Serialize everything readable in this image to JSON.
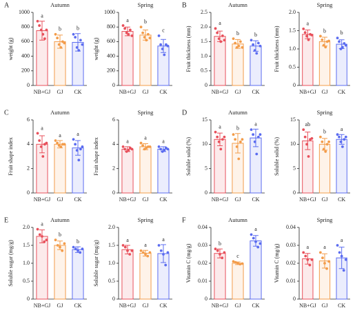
{
  "colors": [
    "#e8505b",
    "#f39c4a",
    "#5b6cf0"
  ],
  "chart_data": [
    {
      "type": "bar",
      "panel": "A",
      "title": "Autumn",
      "ylabel": "weight (g)",
      "categories": [
        "NB+GJ",
        "GJ",
        "CK"
      ],
      "values": [
        750,
        600,
        590
      ],
      "errors": [
        130,
        90,
        120
      ],
      "points": [
        [
          880,
          820,
          760,
          700,
          640,
          760
        ],
        [
          700,
          650,
          560,
          520,
          600,
          580
        ],
        [
          700,
          660,
          520,
          480,
          620,
          560
        ]
      ],
      "letters": [
        "a",
        "b",
        "b"
      ],
      "ylim": [
        0,
        1000
      ],
      "yticks": [
        0,
        200,
        400,
        600,
        800,
        1000
      ]
    },
    {
      "type": "bar",
      "title": "Spring",
      "ylabel": "weight (g)",
      "categories": [
        "NB+GJ",
        "GJ",
        "CK"
      ],
      "values": [
        740,
        690,
        540
      ],
      "errors": [
        60,
        70,
        90
      ],
      "points": [
        [
          820,
          780,
          720,
          700,
          760,
          680
        ],
        [
          800,
          720,
          660,
          620,
          700,
          650
        ],
        [
          680,
          560,
          500,
          420,
          560,
          540
        ]
      ],
      "letters": [
        "a",
        "b",
        "c"
      ],
      "ylim": [
        0,
        1000
      ],
      "yticks": [
        0,
        200,
        400,
        600,
        800,
        1000
      ]
    },
    {
      "type": "bar",
      "panel": "B",
      "title": "Autumn",
      "ylabel": "Fruit thickness (mm)",
      "categories": [
        "NB+GJ",
        "GJ",
        "CK"
      ],
      "values": [
        1.68,
        1.42,
        1.35
      ],
      "errors": [
        0.18,
        0.15,
        0.18
      ],
      "points": [
        [
          1.95,
          1.8,
          1.6,
          1.5,
          1.7,
          1.55
        ],
        [
          1.6,
          1.45,
          1.3,
          1.35,
          1.5,
          1.3
        ],
        [
          1.55,
          1.4,
          1.2,
          1.1,
          1.45,
          1.35
        ]
      ],
      "letters": [
        "a",
        "b",
        "b"
      ],
      "ylim": [
        0,
        2.5
      ],
      "yticks": [
        0,
        0.5,
        {
          "value": 1,
          "label": "1.0"
        },
        1.5,
        {
          "value": 2,
          "label": "2.0"
        },
        2.5
      ]
    },
    {
      "type": "bar",
      "title": "Spring",
      "ylabel": "Fruit thickness (mm)",
      "categories": [
        "NB+GJ",
        "GJ",
        "CK"
      ],
      "values": [
        1.4,
        1.2,
        1.13
      ],
      "errors": [
        0.12,
        0.12,
        0.12
      ],
      "points": [
        [
          1.55,
          1.45,
          1.35,
          1.25,
          1.4,
          1.38
        ],
        [
          1.35,
          1.25,
          1.1,
          1.05,
          1.2,
          1.22
        ],
        [
          1.3,
          1.2,
          1.0,
          1.05,
          1.15,
          1.1
        ]
      ],
      "letters": [
        "a",
        "b",
        "b"
      ],
      "ylim": [
        0,
        2
      ],
      "yticks": [
        0,
        0.5,
        {
          "value": 1,
          "label": "1.0"
        },
        1.5,
        {
          "value": 2,
          "label": "2.0"
        }
      ]
    },
    {
      "type": "bar",
      "panel": "C",
      "title": "Autumn",
      "ylabel": "Fruit shape index",
      "categories": [
        "NB+GJ",
        "GJ",
        "CK"
      ],
      "values": [
        4.0,
        4.0,
        3.7
      ],
      "errors": [
        0.7,
        0.3,
        0.6
      ],
      "points": [
        [
          4.9,
          4.3,
          3.8,
          3.0,
          4.0,
          4.1
        ],
        [
          4.3,
          4.1,
          3.9,
          3.8,
          4.0,
          4.0
        ],
        [
          4.4,
          4.0,
          3.5,
          2.7,
          3.6,
          3.8
        ]
      ],
      "letters": [
        "a",
        "a",
        "a"
      ],
      "ylim": [
        0,
        6
      ],
      "yticks": [
        0,
        2,
        4,
        6
      ]
    },
    {
      "type": "bar",
      "title": "Spring",
      "ylabel": "Fruit shape index",
      "categories": [
        "NB+GJ",
        "GJ",
        "CK"
      ],
      "values": [
        3.6,
        3.8,
        3.6
      ],
      "errors": [
        0.2,
        0.25,
        0.2
      ],
      "points": [
        [
          3.8,
          3.6,
          3.4,
          3.5,
          3.7,
          3.6
        ],
        [
          4.1,
          3.9,
          3.6,
          3.7,
          3.8,
          3.8
        ],
        [
          3.8,
          3.6,
          3.4,
          3.5,
          3.7,
          3.6
        ]
      ],
      "letters": [
        "a",
        "a",
        "a"
      ],
      "ylim": [
        0,
        6
      ],
      "yticks": [
        0,
        2,
        4,
        6
      ]
    },
    {
      "type": "bar",
      "panel": "D",
      "title": "Autumn",
      "ylabel": "Soluble solid (%)",
      "categories": [
        "NB+GJ",
        "GJ",
        "CK"
      ],
      "values": [
        11.0,
        10.2,
        11.3
      ],
      "errors": [
        1.3,
        2.0,
        1.8
      ],
      "points": [
        [
          12.5,
          11.5,
          10.5,
          9.0,
          11.0,
          11.5
        ],
        [
          12.0,
          11.0,
          9.5,
          7.0,
          10.5,
          11.0
        ],
        [
          13.0,
          12.0,
          10.5,
          8.0,
          11.5,
          12.0
        ]
      ],
      "letters": [
        "a",
        "b",
        "a"
      ],
      "ylim": [
        0,
        15
      ],
      "yticks": [
        0,
        5,
        10,
        15
      ]
    },
    {
      "type": "bar",
      "title": "Spring",
      "ylabel": "Soluble solid (%)",
      "categories": [
        "NB+GJ",
        "GJ",
        "CK"
      ],
      "values": [
        10.7,
        10.0,
        11.0
      ],
      "errors": [
        1.8,
        1.2,
        1.0
      ],
      "points": [
        [
          13.0,
          11.5,
          10.0,
          7.5,
          11.0,
          11.2
        ],
        [
          11.5,
          10.5,
          9.0,
          8.5,
          10.0,
          10.5
        ],
        [
          12.0,
          11.5,
          10.5,
          9.5,
          11.0,
          11.5
        ]
      ],
      "letters": [
        "ab",
        "b",
        "a"
      ],
      "ylim": [
        0,
        15
      ],
      "yticks": [
        0,
        5,
        10,
        15
      ]
    },
    {
      "type": "bar",
      "panel": "E",
      "title": "Autumn",
      "ylabel": "Soluble sugar (mg/g)",
      "categories": [
        "NB+GJ",
        "GJ",
        "CK"
      ],
      "values": [
        1.75,
        1.5,
        1.38
      ],
      "errors": [
        0.18,
        0.12,
        0.08
      ],
      "points": [
        [
          1.95,
          1.8,
          1.75,
          1.6,
          1.65
        ],
        [
          1.65,
          1.5,
          1.45,
          1.35,
          1.55
        ],
        [
          1.45,
          1.4,
          1.35,
          1.3,
          1.4
        ]
      ],
      "letters": [
        "a",
        "b",
        "b"
      ],
      "ylim": [
        0,
        2
      ],
      "yticks": [
        0,
        0.5,
        {
          "value": 1,
          "label": "1.0"
        },
        1.5,
        {
          "value": 2,
          "label": "2.0"
        }
      ]
    },
    {
      "type": "bar",
      "title": "Spring",
      "ylabel": "Soluble sugar (mg/g)",
      "categories": [
        "NB+GJ",
        "GJ",
        "CK"
      ],
      "values": [
        1.38,
        1.28,
        1.27
      ],
      "errors": [
        0.12,
        0.08,
        0.25
      ],
      "points": [
        [
          1.5,
          1.45,
          1.35,
          1.25,
          1.35
        ],
        [
          1.35,
          1.3,
          1.25,
          1.2,
          1.3
        ],
        [
          1.5,
          1.35,
          1.25,
          0.95,
          1.3
        ]
      ],
      "letters": [
        "a",
        "a",
        "a"
      ],
      "ylim": [
        0,
        2
      ],
      "yticks": [
        0,
        0.5,
        {
          "value": 1,
          "label": "1.0"
        },
        1.5,
        {
          "value": 2,
          "label": "2.0"
        }
      ]
    },
    {
      "type": "bar",
      "panel": "F",
      "title": "Autumn",
      "ylabel": "Vitamin C (mg/g)",
      "categories": [
        "NB+GJ",
        "GJ",
        "CK"
      ],
      "values": [
        0.0255,
        0.02,
        0.0325
      ],
      "errors": [
        0.0025,
        0.0007,
        0.003
      ],
      "points": [
        [
          0.028,
          0.027,
          0.025,
          0.023,
          0.026
        ],
        [
          0.021,
          0.0205,
          0.02,
          0.0195,
          0.0198
        ],
        [
          0.036,
          0.034,
          0.032,
          0.029,
          0.031
        ]
      ],
      "letters": [
        "b",
        "c",
        "a"
      ],
      "ylim": [
        0,
        0.04
      ],
      "yticks": [
        0,
        0.01,
        0.02,
        0.03,
        0.04
      ]
    },
    {
      "type": "bar",
      "title": "Spring",
      "ylabel": "Vitamin C (mg/g)",
      "categories": [
        "NB+GJ",
        "GJ",
        "CK"
      ],
      "values": [
        0.0225,
        0.0213,
        0.023
      ],
      "errors": [
        0.003,
        0.004,
        0.006
      ],
      "points": [
        [
          0.026,
          0.024,
          0.022,
          0.019,
          0.022
        ],
        [
          0.026,
          0.023,
          0.02,
          0.017,
          0.021
        ],
        [
          0.03,
          0.026,
          0.024,
          0.016,
          0.022
        ]
      ],
      "letters": [
        "a",
        "a",
        "a"
      ],
      "ylim": [
        0,
        0.04
      ],
      "yticks": [
        0,
        0.01,
        0.02,
        0.03,
        0.04
      ]
    }
  ]
}
